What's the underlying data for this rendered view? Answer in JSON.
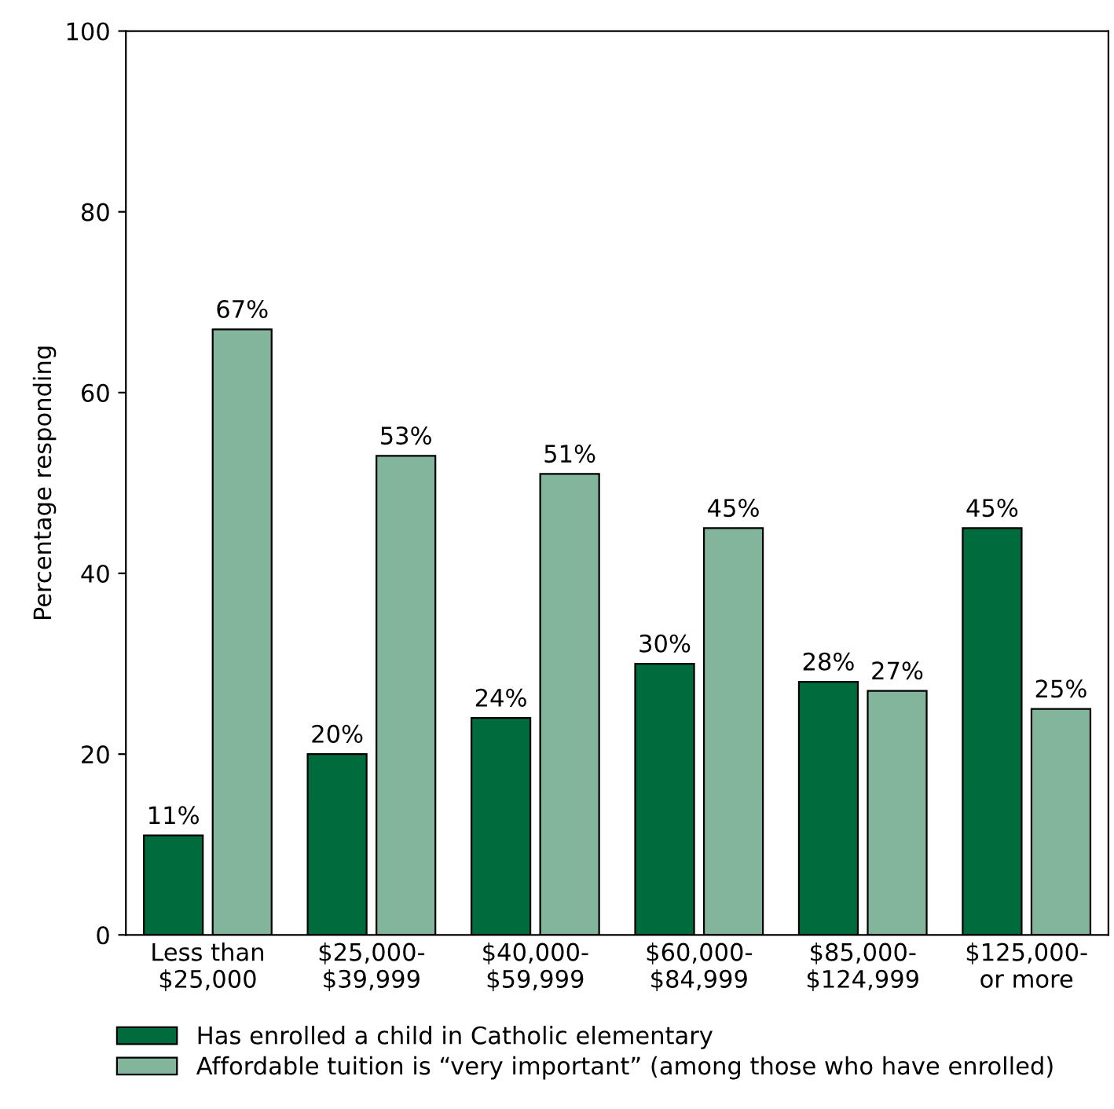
{
  "chart_data": {
    "type": "bar",
    "ylabel": "Percentage responding",
    "categories": [
      "Less than\n$25,000",
      "$25,000-\n$39,999",
      "$40,000-\n$59,999",
      "$60,000-\n$84,999",
      "$85,000-\n$124,999",
      "$125,000-\nor more"
    ],
    "series": [
      {
        "name": "Has enrolled a child in Catholic elementary",
        "color": "#006b3c",
        "values": [
          11,
          20,
          24,
          30,
          28,
          45
        ],
        "value_labels": [
          "11%",
          "20%",
          "24%",
          "30%",
          "28%",
          "45%"
        ]
      },
      {
        "name": "Affordable tuition is “very important” (among those who have enrolled)",
        "color": "#82b59b",
        "values": [
          67,
          53,
          51,
          45,
          27,
          25
        ],
        "value_labels": [
          "67%",
          "53%",
          "51%",
          "45%",
          "27%",
          "25%"
        ]
      }
    ],
    "ylim": [
      0,
      100
    ],
    "yticks": [
      0,
      20,
      40,
      60,
      80,
      100
    ],
    "grid": false,
    "legend": "bottom"
  }
}
